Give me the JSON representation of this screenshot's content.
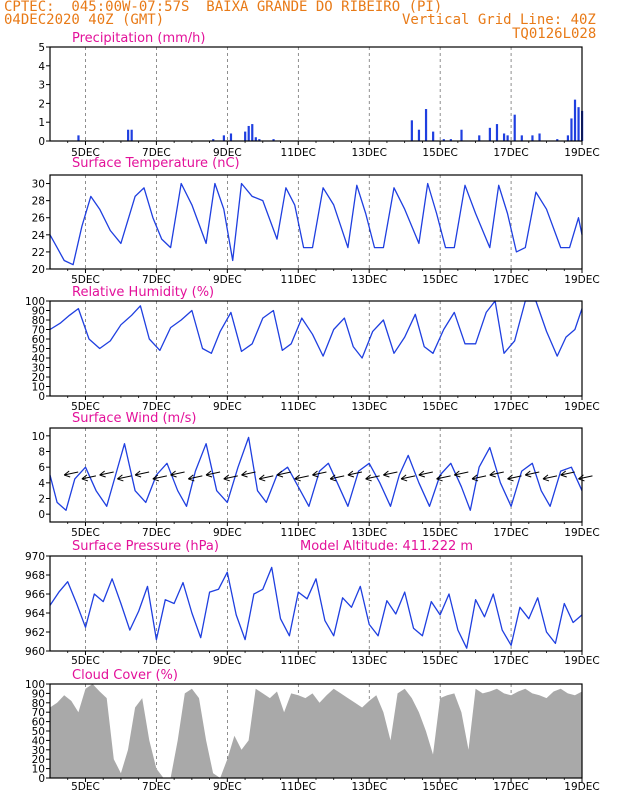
{
  "header": {
    "line1": "CPTEC:  045:00W-07:57S  BAIXA GRANDE DO RIBEIRO (PI)",
    "line2": "04DEC2020 40Z (GMT)",
    "grid_note": "Vertical Grid Line: 40Z",
    "code": "TQ0126L028"
  },
  "x_dates": [
    "5DEC",
    "7DEC",
    "9DEC",
    "11DEC",
    "13DEC",
    "15DEC",
    "17DEC",
    "19DEC"
  ],
  "colors": {
    "line": "#1f3fe0",
    "bar": "#1f3fe0",
    "cloud": "#a9a9a9",
    "title": "#e3119a",
    "header": "#e87a17"
  },
  "chart_data": [
    {
      "type": "bar",
      "title": "Precipitation (mm/h)",
      "ylim": [
        0,
        5
      ],
      "yticks": [
        0,
        1,
        2,
        3,
        4,
        5
      ],
      "x": [
        4.8,
        6.2,
        6.3,
        8.6,
        8.9,
        9.1,
        9.5,
        9.6,
        9.7,
        9.8,
        9.9,
        10.3,
        14.2,
        14.4,
        14.6,
        14.8,
        15.1,
        15.3,
        15.6,
        16.1,
        16.4,
        16.6,
        16.8,
        16.9,
        17.1,
        17.3,
        17.6,
        17.8,
        18.3,
        18.6,
        18.7,
        18.8,
        18.9,
        19.0
      ],
      "values": [
        0.3,
        0.6,
        0.6,
        0.1,
        0.3,
        0.4,
        0.5,
        0.8,
        0.9,
        0.2,
        0.1,
        0.1,
        1.1,
        0.6,
        1.7,
        0.5,
        0.1,
        0.1,
        0.6,
        0.3,
        0.7,
        0.9,
        0.4,
        0.3,
        1.4,
        0.3,
        0.3,
        0.4,
        0.1,
        0.3,
        1.2,
        2.2,
        1.8,
        1.6
      ]
    },
    {
      "type": "line",
      "title": "Surface Temperature (nC)",
      "ylim": [
        20,
        31
      ],
      "yticks": [
        20,
        22,
        24,
        26,
        28,
        30
      ],
      "x": [
        4.0,
        4.2,
        4.4,
        4.65,
        4.9,
        5.15,
        5.4,
        5.7,
        6.0,
        6.4,
        6.65,
        6.9,
        7.15,
        7.4,
        7.7,
        8.0,
        8.4,
        8.65,
        8.9,
        9.15,
        9.4,
        9.7,
        10.0,
        10.4,
        10.65,
        10.9,
        11.15,
        11.4,
        11.7,
        12.0,
        12.4,
        12.65,
        12.9,
        13.15,
        13.4,
        13.7,
        14.0,
        14.4,
        14.65,
        14.9,
        15.15,
        15.4,
        15.7,
        16.0,
        16.4,
        16.65,
        16.9,
        17.15,
        17.4,
        17.7,
        18.0,
        18.4,
        18.65,
        18.9,
        19.0
      ],
      "values": [
        24.0,
        22.5,
        21.0,
        20.5,
        25.0,
        28.5,
        27.0,
        24.5,
        23.0,
        28.5,
        29.5,
        26.0,
        23.5,
        22.5,
        30.0,
        27.5,
        23.0,
        30.0,
        27.0,
        21.0,
        30.0,
        28.5,
        28.0,
        23.5,
        29.5,
        27.5,
        22.5,
        22.5,
        29.5,
        27.5,
        22.5,
        29.8,
        26.5,
        22.5,
        22.5,
        29.5,
        27.0,
        23.0,
        30.0,
        26.5,
        22.5,
        22.5,
        29.8,
        26.5,
        22.5,
        29.8,
        26.5,
        22.0,
        22.5,
        29.0,
        27.0,
        22.5,
        22.5,
        26.0,
        24.0
      ]
    },
    {
      "type": "line",
      "title": "Relative Humidity (%)",
      "ylim": [
        0,
        100
      ],
      "yticks": [
        0,
        10,
        20,
        30,
        40,
        50,
        60,
        70,
        80,
        90,
        100
      ],
      "x": [
        4.0,
        4.3,
        4.55,
        4.8,
        5.1,
        5.4,
        5.7,
        6.0,
        6.3,
        6.55,
        6.8,
        7.1,
        7.4,
        7.7,
        8.0,
        8.3,
        8.55,
        8.8,
        9.1,
        9.4,
        9.7,
        10.0,
        10.3,
        10.55,
        10.8,
        11.1,
        11.4,
        11.7,
        12.0,
        12.3,
        12.55,
        12.8,
        13.1,
        13.4,
        13.7,
        14.0,
        14.3,
        14.55,
        14.8,
        15.1,
        15.4,
        15.7,
        16.0,
        16.3,
        16.55,
        16.8,
        17.1,
        17.4,
        17.7,
        18.0,
        18.3,
        18.55,
        18.8,
        19.0
      ],
      "values": [
        70,
        77,
        85,
        92,
        60,
        50,
        58,
        75,
        85,
        95,
        60,
        48,
        72,
        80,
        90,
        50,
        45,
        68,
        88,
        47,
        55,
        82,
        90,
        48,
        55,
        82,
        65,
        42,
        70,
        82,
        52,
        40,
        68,
        80,
        45,
        62,
        86,
        52,
        45,
        70,
        88,
        55,
        55,
        88,
        100,
        45,
        58,
        100,
        100,
        68,
        42,
        62,
        70,
        92
      ]
    },
    {
      "type": "line",
      "title": "Surface Wind (m/s)",
      "ylim": [
        -1,
        11
      ],
      "yticks": [
        0,
        2,
        4,
        6,
        8,
        10
      ],
      "x": [
        4.0,
        4.2,
        4.45,
        4.7,
        5.0,
        5.3,
        5.6,
        5.85,
        6.1,
        6.4,
        6.7,
        7.0,
        7.3,
        7.6,
        7.85,
        8.1,
        8.4,
        8.7,
        9.0,
        9.3,
        9.6,
        9.85,
        10.1,
        10.4,
        10.7,
        11.0,
        11.3,
        11.6,
        11.85,
        12.1,
        12.4,
        12.7,
        13.0,
        13.3,
        13.6,
        13.85,
        14.1,
        14.4,
        14.7,
        15.0,
        15.3,
        15.6,
        15.85,
        16.1,
        16.4,
        16.7,
        17.0,
        17.3,
        17.6,
        17.85,
        18.1,
        18.4,
        18.7,
        19.0
      ],
      "values": [
        5.0,
        1.5,
        0.5,
        4.5,
        6.0,
        3.0,
        1.0,
        5.0,
        9.0,
        3.0,
        1.5,
        5.0,
        6.5,
        3.0,
        1.0,
        5.5,
        9.0,
        3.0,
        1.5,
        6.0,
        9.8,
        3.0,
        1.5,
        5.0,
        6.0,
        3.5,
        1.0,
        5.5,
        6.5,
        4.0,
        1.0,
        5.5,
        6.5,
        4.0,
        1.0,
        5.0,
        7.5,
        4.0,
        1.0,
        5.0,
        6.5,
        3.5,
        0.5,
        6.0,
        8.5,
        4.0,
        1.0,
        5.5,
        6.5,
        3.0,
        1.0,
        5.5,
        6.0,
        3.0
      ]
    },
    {
      "type": "line",
      "title": "Surface Pressure (hPa)",
      "annotation": "Model Altitude: 411.222 m",
      "ylim": [
        960,
        970
      ],
      "yticks": [
        960,
        962,
        964,
        966,
        968,
        970
      ],
      "x": [
        4.0,
        4.25,
        4.5,
        4.75,
        5.0,
        5.25,
        5.5,
        5.75,
        6.0,
        6.25,
        6.5,
        6.75,
        7.0,
        7.25,
        7.5,
        7.75,
        8.0,
        8.25,
        8.5,
        8.75,
        9.0,
        9.25,
        9.5,
        9.75,
        10.0,
        10.25,
        10.5,
        10.75,
        11.0,
        11.25,
        11.5,
        11.75,
        12.0,
        12.25,
        12.5,
        12.75,
        13.0,
        13.25,
        13.5,
        13.75,
        14.0,
        14.25,
        14.5,
        14.75,
        15.0,
        15.25,
        15.5,
        15.75,
        16.0,
        16.25,
        16.5,
        16.75,
        17.0,
        17.25,
        17.5,
        17.75,
        18.0,
        18.25,
        18.5,
        18.75,
        19.0
      ],
      "values": [
        964.8,
        966.2,
        967.3,
        965.0,
        962.5,
        966.0,
        965.2,
        967.6,
        965.0,
        962.2,
        964.2,
        966.8,
        961.2,
        965.4,
        965.0,
        967.2,
        964.0,
        961.4,
        966.2,
        966.5,
        968.3,
        963.8,
        961.2,
        966.0,
        966.5,
        968.8,
        963.4,
        961.6,
        966.2,
        965.5,
        967.6,
        963.2,
        961.6,
        965.6,
        964.6,
        966.8,
        962.8,
        961.6,
        965.3,
        963.9,
        966.2,
        962.4,
        961.6,
        965.2,
        963.8,
        966.0,
        962.2,
        960.3,
        965.4,
        963.6,
        966.0,
        962.2,
        960.6,
        964.6,
        963.4,
        965.6,
        962.0,
        960.8,
        965.0,
        963.0,
        963.8
      ]
    },
    {
      "type": "area",
      "title": "Cloud Cover (%)",
      "ylim": [
        0,
        100
      ],
      "yticks": [
        0,
        10,
        20,
        30,
        40,
        50,
        60,
        70,
        80,
        90,
        100
      ],
      "x": [
        4.0,
        4.2,
        4.4,
        4.6,
        4.8,
        5.0,
        5.2,
        5.4,
        5.6,
        5.8,
        6.0,
        6.2,
        6.4,
        6.6,
        6.8,
        7.0,
        7.2,
        7.4,
        7.6,
        7.8,
        8.0,
        8.2,
        8.4,
        8.6,
        8.8,
        9.0,
        9.2,
        9.4,
        9.6,
        9.8,
        10.0,
        10.2,
        10.4,
        10.6,
        10.8,
        11.0,
        11.2,
        11.4,
        11.6,
        11.8,
        12.0,
        12.2,
        12.4,
        12.6,
        12.8,
        13.0,
        13.2,
        13.4,
        13.6,
        13.8,
        14.0,
        14.2,
        14.4,
        14.6,
        14.8,
        15.0,
        15.2,
        15.4,
        15.6,
        15.8,
        16.0,
        16.2,
        16.4,
        16.6,
        16.8,
        17.0,
        17.2,
        17.4,
        17.6,
        17.8,
        18.0,
        18.2,
        18.4,
        18.6,
        18.8,
        19.0
      ],
      "values": [
        75,
        80,
        88,
        82,
        70,
        95,
        100,
        92,
        85,
        20,
        5,
        30,
        75,
        85,
        40,
        10,
        0,
        0,
        40,
        90,
        95,
        85,
        40,
        5,
        0,
        20,
        45,
        30,
        40,
        95,
        90,
        85,
        92,
        70,
        90,
        88,
        85,
        90,
        80,
        88,
        95,
        90,
        85,
        80,
        75,
        82,
        88,
        70,
        40,
        90,
        95,
        85,
        70,
        50,
        25,
        85,
        88,
        90,
        70,
        30,
        95,
        90,
        92,
        95,
        90,
        88,
        92,
        95,
        90,
        88,
        85,
        92,
        95,
        90,
        88,
        92
      ]
    }
  ]
}
